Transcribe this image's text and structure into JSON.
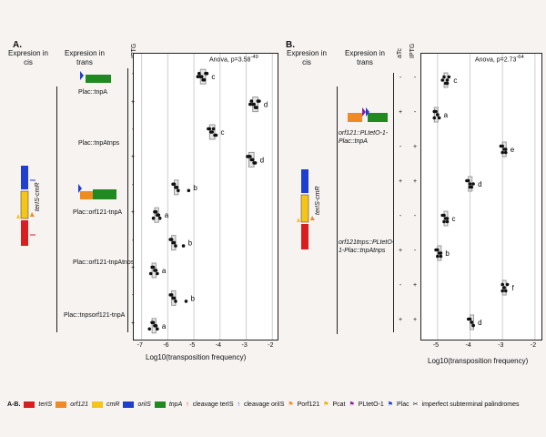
{
  "panelA": {
    "letter": "A.",
    "expr_cis": "Expresion in cis",
    "expr_trans": "Expresion in trans",
    "iptg": "IPTG",
    "construct": "terIS-cmR",
    "anova": "Anova, p=3.58",
    "anova_exp": "-49",
    "conditions": [
      "Plac::tnpA",
      "Plac::tnpAtnps",
      "Plac::orf121-tnpA",
      "Plac::orf121-tnpAtnps",
      "Plac::tnpsorf121-tnpA"
    ],
    "xlabel": "Log10(transposition frequency)",
    "xticks": [
      "-7",
      "-6",
      "-5",
      "-4",
      "-3",
      "-2"
    ]
  },
  "panelB": {
    "letter": "B.",
    "expr_cis": "Expresion in cis",
    "expr_trans": "Expresion in trans",
    "atc": "aTc",
    "iptg": "IPTG",
    "construct": "terIS-cmR",
    "anova": "Anova, p=2.73",
    "anova_exp": "-64",
    "conditions": [
      "orf121::PLtetO-1-Plac::tnpA",
      "orf121tnps::PLtetO-1-Plac::tnpAtnps"
    ],
    "xlabel": "Log10(transposition frequency)",
    "xticks": [
      "-5",
      "-4",
      "-3",
      "-2"
    ]
  },
  "legend": {
    "label": "A-B.",
    "items": [
      "terIS",
      "orf121",
      "cmR",
      "oriIS",
      "tnpA",
      "cleavage terIS",
      "cleavage oriIS",
      "Porf121",
      "Pcat",
      "PLtetO-1",
      "Plac",
      "imperfect subterminal palindromes"
    ],
    "colors": {
      "terIS": "#d81e1e",
      "orf121": "#f08a24",
      "cmR": "#f5c518",
      "oriIS": "#1f3fcf",
      "tnpA": "#1f8a1f"
    }
  },
  "chart_data": [
    {
      "type": "scatter",
      "title": "Anova, p=3.58e-49",
      "xlabel": "Log10(transposition frequency)",
      "xlim": [
        -7.3,
        -1.8
      ],
      "series": [
        {
          "name": "Plac::tnpA -",
          "values": [
            -4.8,
            -4.7,
            -4.6,
            -4.55,
            -4.75,
            -4.65,
            -4.5,
            -4.85
          ],
          "letter": "c"
        },
        {
          "name": "Plac::tnpA +",
          "values": [
            -2.8,
            -2.7,
            -2.6,
            -2.55,
            -2.75,
            -2.65,
            -2.5,
            -2.85
          ],
          "letter": "d"
        },
        {
          "name": "Plac::tnpAtnps -",
          "values": [
            -4.4,
            -4.3,
            -4.2,
            -4.25,
            -4.35,
            -4.15,
            -4.45
          ],
          "letter": "c"
        },
        {
          "name": "Plac::tnpAtnps +",
          "values": [
            -2.9,
            -2.8,
            -2.7,
            -2.85,
            -2.75,
            -2.65,
            -2.95
          ],
          "letter": "d"
        },
        {
          "name": "Plac::orf121-tnpA -",
          "values": [
            -5.8,
            -5.7,
            -5.6,
            -5.75,
            -5.65,
            -5.2
          ],
          "letter": "b"
        },
        {
          "name": "Plac::orf121-tnpA +",
          "values": [
            -6.5,
            -6.4,
            -6.3,
            -6.45,
            -6.35,
            -6.55
          ],
          "letter": "a"
        },
        {
          "name": "Plac::orf121-tnpAtnps -",
          "values": [
            -5.9,
            -5.8,
            -5.7,
            -5.85,
            -5.75,
            -5.4
          ],
          "letter": "b"
        },
        {
          "name": "Plac::orf121-tnpAtnps +",
          "values": [
            -6.6,
            -6.5,
            -6.4,
            -6.55,
            -6.45,
            -6.65
          ],
          "letter": "a"
        },
        {
          "name": "Plac::tnpsorf121-tnpA -",
          "values": [
            -5.9,
            -5.8,
            -5.7,
            -5.85,
            -5.75,
            -5.3
          ],
          "letter": "b"
        },
        {
          "name": "Plac::tnpsorf121-tnpA +",
          "values": [
            -6.6,
            -6.5,
            -6.4,
            -6.55,
            -6.45,
            -6.7
          ],
          "letter": "a"
        }
      ]
    },
    {
      "type": "scatter",
      "title": "Anova, p=2.73e-64",
      "xlabel": "Log10(transposition frequency)",
      "xlim": [
        -5.5,
        -1.8
      ],
      "series": [
        {
          "name": "orf121 - -",
          "values": [
            -4.8,
            -4.7,
            -4.75,
            -4.65,
            -4.85,
            -4.7
          ],
          "letter": "c"
        },
        {
          "name": "orf121 + -",
          "values": [
            -5.1,
            -5.0,
            -4.95,
            -5.05,
            -5.0,
            -5.1
          ],
          "letter": "a"
        },
        {
          "name": "orf121 - +",
          "values": [
            -3.0,
            -2.95,
            -2.9,
            -3.05,
            -2.9,
            -3.0
          ],
          "letter": "e"
        },
        {
          "name": "orf121 + +",
          "values": [
            -4.1,
            -4.0,
            -3.95,
            -4.05,
            -3.9,
            -4.0
          ],
          "letter": "d"
        },
        {
          "name": "orf121tnps - -",
          "values": [
            -4.8,
            -4.75,
            -4.7,
            -4.85,
            -4.7,
            -4.8
          ],
          "letter": "c"
        },
        {
          "name": "orf121tnps + -",
          "values": [
            -5.0,
            -4.95,
            -4.9,
            -5.05,
            -4.9,
            -5.0
          ],
          "letter": "b"
        },
        {
          "name": "orf121tnps - +",
          "values": [
            -3.0,
            -2.95,
            -2.9,
            -2.85,
            -2.95,
            -3.0
          ],
          "letter": "f"
        },
        {
          "name": "orf121tnps + +",
          "values": [
            -4.0,
            -3.95,
            -3.9,
            -4.05,
            -3.95,
            -3.9
          ],
          "letter": "d"
        }
      ]
    }
  ]
}
